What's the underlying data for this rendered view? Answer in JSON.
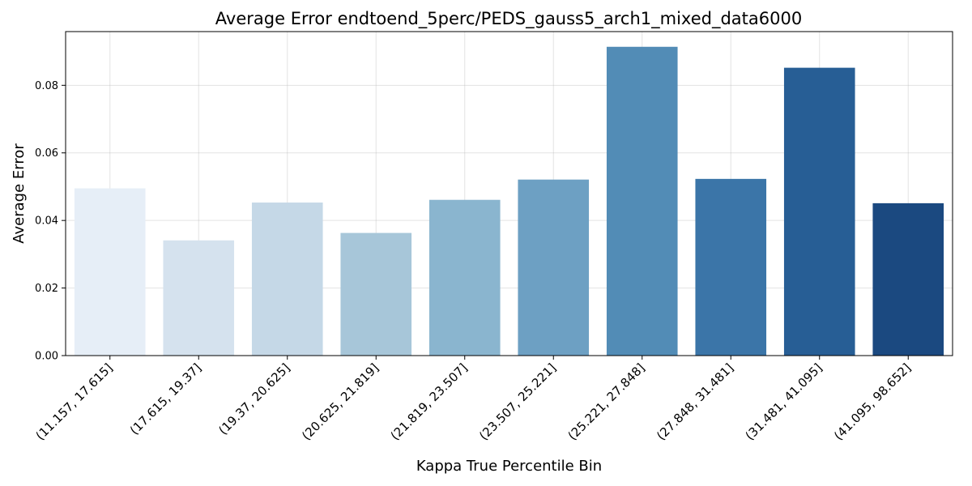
{
  "chart_data": {
    "type": "bar",
    "title": "Average Error endtoend_5perc/PEDS_gauss5_arch1_mixed_data6000",
    "xlabel": "Kappa True Percentile Bin",
    "ylabel": "Average Error",
    "categories": [
      "(11.157, 17.615]",
      "(17.615, 19.37]",
      "(19.37, 20.625]",
      "(20.625, 21.819]",
      "(21.819, 23.507]",
      "(23.507, 25.221]",
      "(25.221, 27.848]",
      "(27.848, 31.481]",
      "(31.481, 41.095]",
      "(41.095, 98.652]"
    ],
    "values": [
      0.0495,
      0.0341,
      0.0453,
      0.0363,
      0.0461,
      0.0521,
      0.0914,
      0.0523,
      0.0852,
      0.0451
    ],
    "colors": [
      "#e6eef7",
      "#d5e2ee",
      "#c5d8e7",
      "#a7c6d9",
      "#8ab5cf",
      "#6da0c3",
      "#528cb6",
      "#3b75a8",
      "#275e95",
      "#1b4980"
    ],
    "yticks": [
      "0.00",
      "0.02",
      "0.04",
      "0.06",
      "0.08"
    ],
    "ytick_values": [
      0,
      0.02,
      0.04,
      0.06,
      0.08
    ],
    "ylim": [
      0,
      0.0959
    ],
    "grid": true,
    "legend": "none"
  }
}
